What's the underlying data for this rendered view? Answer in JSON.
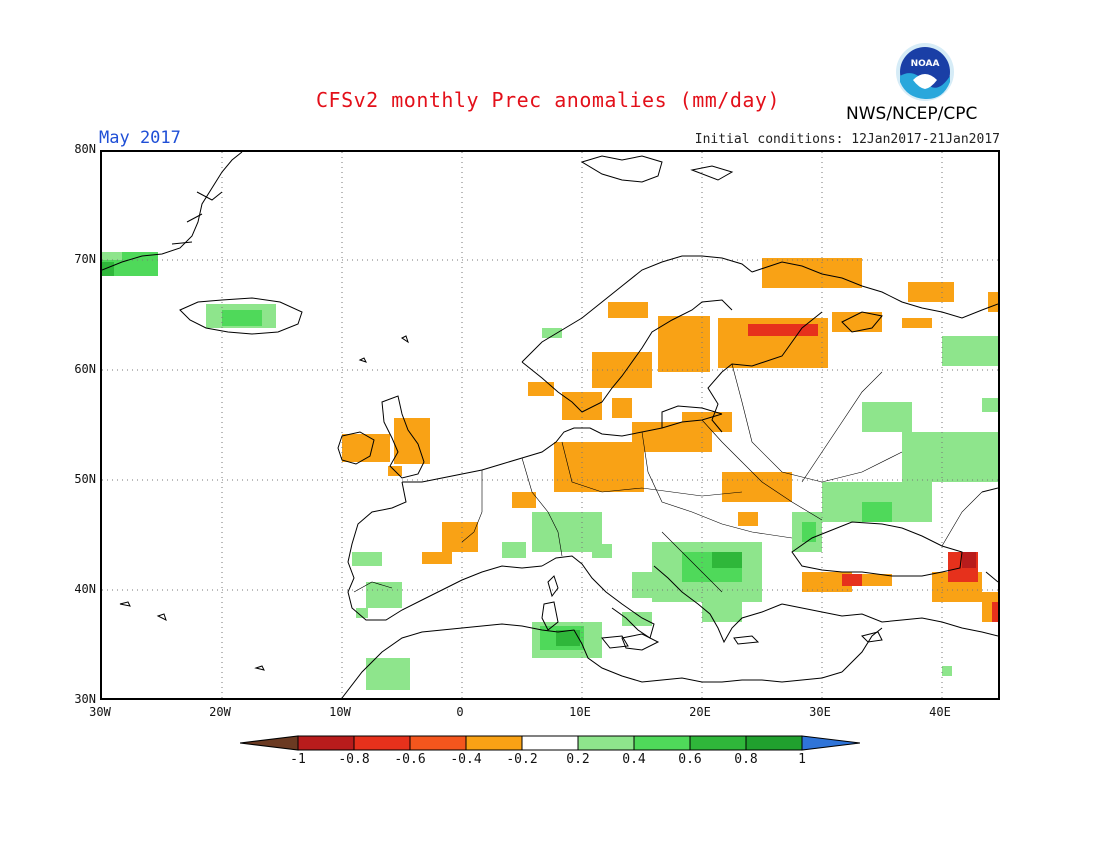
{
  "header": {
    "title": "CFSv2 monthly Prec anomalies (mm/day)",
    "month": "May 2017",
    "initial_conditions": "Initial conditions: 12Jan2017-21Jan2017",
    "agency": "NWS/NCEP/CPC",
    "logo_text": "NOAA"
  },
  "axes": {
    "lat_labels": [
      "80N",
      "70N",
      "60N",
      "50N",
      "40N",
      "30N"
    ],
    "lon_labels": [
      "30W",
      "20W",
      "10W",
      "0",
      "10E",
      "20E",
      "30E",
      "40E"
    ]
  },
  "colorbar": {
    "labels": [
      "-1",
      "-0.8",
      "-0.6",
      "-0.4",
      "-0.2",
      "0.2",
      "0.4",
      "0.6",
      "0.8",
      "1"
    ],
    "colors": [
      "#b81c1c",
      "#e6311c",
      "#f4561d",
      "#f9a215",
      "#ffffff",
      "#8ee58c",
      "#4fd95a",
      "#2fb73a",
      "#20a02e"
    ],
    "under_color": "#6b3a22",
    "over_color": "#2f74d8"
  },
  "anomaly_colors": {
    "orange": "#f9a215",
    "red": "#e6311c",
    "darkred": "#b81c1c",
    "lightgreen": "#8ee58c",
    "green": "#4fd95a",
    "darkgreen": "#2fb73a"
  }
}
